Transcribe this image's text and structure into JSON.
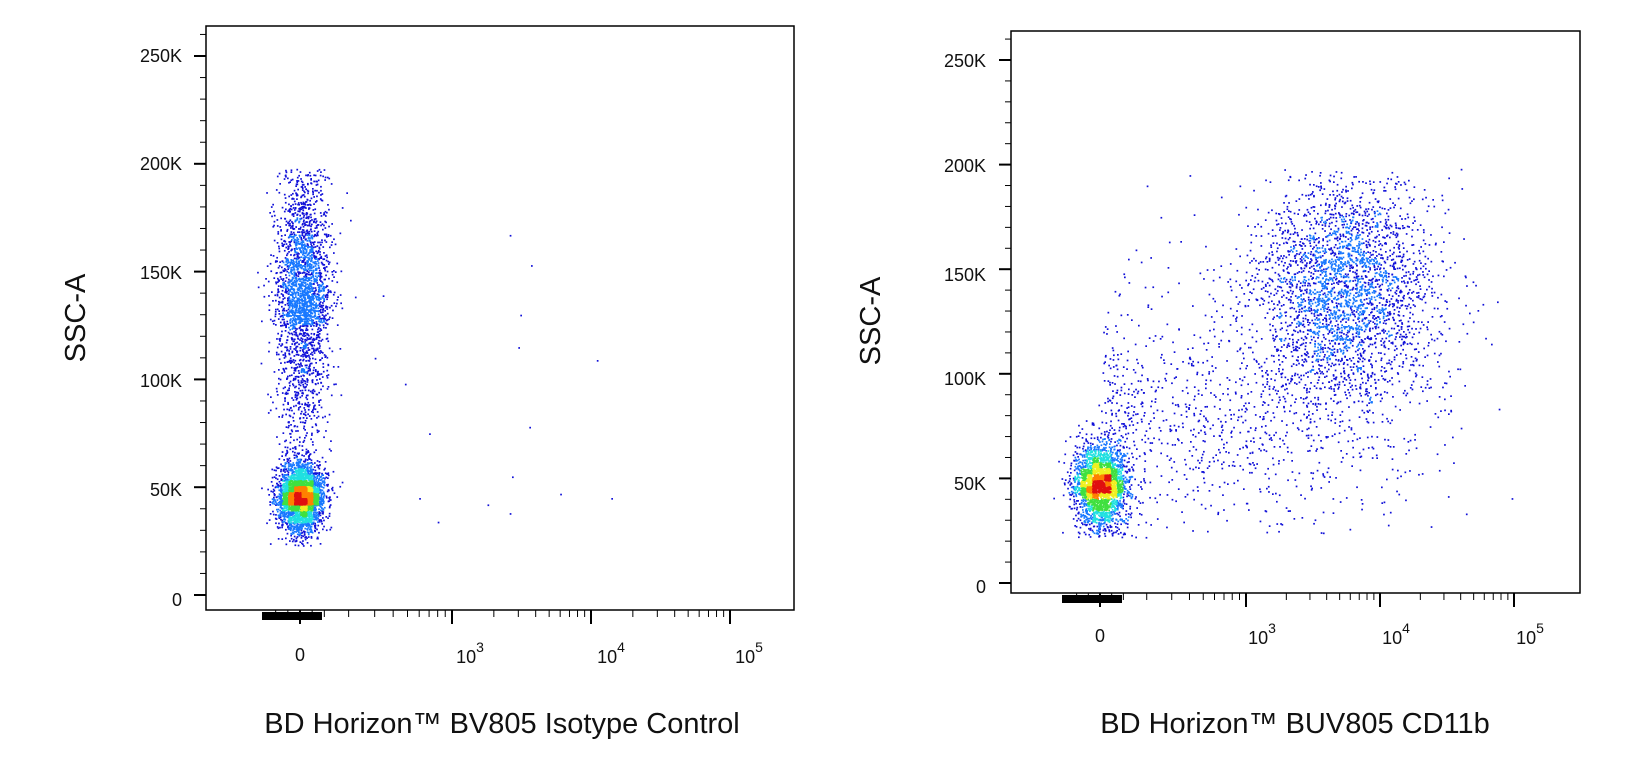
{
  "chart_data": [
    {
      "type": "scatter",
      "subtype": "flow-cytometry-density-dot-plot",
      "xlabel": "BD Horizon™ BV805 Isotype Control",
      "ylabel": "SSC-A",
      "x_scale": "biexponential",
      "y_scale": "linear",
      "xlim": [
        -150,
        100000
      ],
      "ylim": [
        0,
        262144
      ],
      "x_ticks": [
        0,
        1000,
        10000,
        100000
      ],
      "x_tick_labels": [
        {
          "base": "0",
          "exp": ""
        },
        {
          "base": "10",
          "exp": "3"
        },
        {
          "base": "10",
          "exp": "4"
        },
        {
          "base": "10",
          "exp": "5"
        }
      ],
      "y_ticks": [
        0,
        50000,
        100000,
        150000,
        200000,
        250000
      ],
      "y_tick_labels": [
        "0",
        "50K",
        "100K",
        "150K",
        "200K",
        "250K"
      ],
      "grid": false,
      "density_colors": [
        "#1010d8",
        "#1878ff",
        "#20e0e0",
        "#40e040",
        "#f0f020",
        "#ff8000",
        "#e01010"
      ],
      "populations": [
        {
          "x_center": 0,
          "x_spread": 45,
          "y_center": 42000,
          "y_spread": 9000,
          "relative_count": 3500
        },
        {
          "x_center": 10,
          "x_spread": 55,
          "y_center": 125000,
          "y_spread": 38000,
          "relative_count": 2600
        }
      ],
      "outliers": [
        [
          2600,
          167000
        ],
        [
          3700,
          153000
        ],
        [
          3100,
          130000
        ],
        [
          3000,
          115000
        ],
        [
          11000,
          109000
        ],
        [
          480,
          98000
        ],
        [
          700,
          75000
        ],
        [
          3600,
          78000
        ],
        [
          2700,
          55000
        ],
        [
          6000,
          47000
        ],
        [
          14000,
          45000
        ],
        [
          1800,
          42000
        ],
        [
          2600,
          38000
        ],
        [
          800,
          34000
        ],
        [
          600,
          45000
        ],
        [
          340,
          139000
        ],
        [
          300,
          110000
        ]
      ]
    },
    {
      "type": "scatter",
      "subtype": "flow-cytometry-density-dot-plot",
      "xlabel": "BD Horizon™ BUV805 CD11b",
      "ylabel": "SSC-A",
      "x_scale": "biexponential",
      "y_scale": "linear",
      "xlim": [
        -150,
        100000
      ],
      "ylim": [
        0,
        262144
      ],
      "x_ticks": [
        0,
        1000,
        10000,
        100000
      ],
      "x_tick_labels": [
        {
          "base": "0",
          "exp": ""
        },
        {
          "base": "10",
          "exp": "3"
        },
        {
          "base": "10",
          "exp": "4"
        },
        {
          "base": "10",
          "exp": "5"
        }
      ],
      "y_ticks": [
        0,
        50000,
        100000,
        150000,
        200000,
        250000
      ],
      "y_tick_labels": [
        "0",
        "50K",
        "100K",
        "150K",
        "200K",
        "250K"
      ],
      "grid": false,
      "density_colors": [
        "#1010d8",
        "#1878ff",
        "#20e0e0",
        "#40e040",
        "#f0f020",
        "#ff8000",
        "#e01010"
      ],
      "populations": [
        {
          "x_center": 0,
          "x_spread": 55,
          "y_center": 42000,
          "y_spread": 12000,
          "relative_count": 2800
        },
        {
          "x_center": 5500,
          "x_spread_log": 0.33,
          "y_center": 140000,
          "y_spread": 28000,
          "relative_count": 3000
        },
        {
          "x_center": 700,
          "x_spread_log": 0.75,
          "y_center": 75000,
          "y_spread": 32000,
          "relative_count": 1100
        }
      ],
      "outliers": [
        [
          200,
          190000
        ],
        [
          400,
          195000
        ],
        [
          900,
          190000
        ],
        [
          1500,
          192000
        ],
        [
          40000,
          198000
        ],
        [
          250,
          175000
        ],
        [
          100,
          148000
        ],
        [
          120,
          155000
        ]
      ]
    }
  ]
}
